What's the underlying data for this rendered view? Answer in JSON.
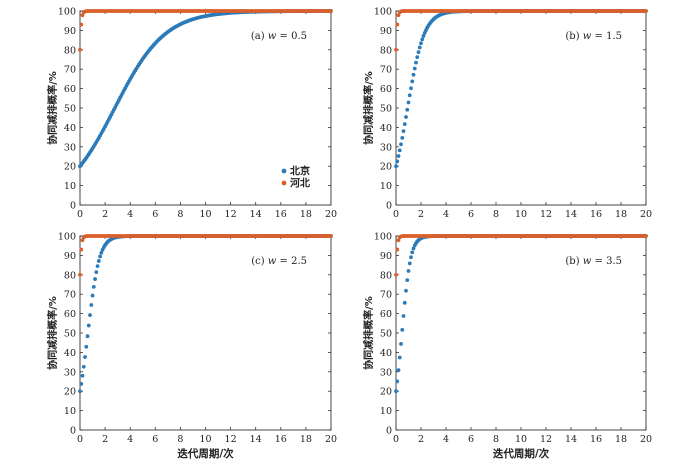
{
  "colors": {
    "beijing": "#2b7bba",
    "hebei": "#d9602a",
    "axis": "#333333"
  },
  "chart_data": [
    {
      "type": "scatter",
      "annotation_prefix": "(a) ",
      "annotation_w": "w",
      "annotation_value": " = 0.5",
      "ylabel": "协同减排概率/%",
      "xlabel": "",
      "xlim": [
        0,
        20
      ],
      "ylim": [
        0,
        100
      ],
      "xticks": [
        "0",
        "2",
        "4",
        "6",
        "8",
        "10",
        "12",
        "14",
        "16",
        "18",
        "20"
      ],
      "yticks": [
        "0",
        "10",
        "20",
        "30",
        "40",
        "50",
        "60",
        "70",
        "80",
        "90",
        "100"
      ],
      "legend": {
        "placement": "right",
        "entries": [
          "北京",
          "河北"
        ]
      },
      "series": [
        {
          "name": "北京",
          "model": "logistic",
          "start": 20,
          "rate": 0.5
        },
        {
          "name": "河北",
          "model": "logistic",
          "start": 80,
          "rate": 12
        }
      ]
    },
    {
      "type": "scatter",
      "annotation_prefix": "(b) ",
      "annotation_w": "w",
      "annotation_value": " = 1.5",
      "ylabel": "协同减排概率/%",
      "xlabel": "",
      "xlim": [
        0,
        20
      ],
      "ylim": [
        0,
        100
      ],
      "xticks": [
        "0",
        "2",
        "4",
        "6",
        "8",
        "10",
        "12",
        "14",
        "16",
        "18",
        "20"
      ],
      "yticks": [
        "0",
        "10",
        "20",
        "30",
        "40",
        "50",
        "60",
        "70",
        "80",
        "90",
        "100"
      ],
      "series": [
        {
          "name": "北京",
          "model": "logistic",
          "start": 20,
          "rate": 1.5
        },
        {
          "name": "河北",
          "model": "logistic",
          "start": 80,
          "rate": 12
        }
      ]
    },
    {
      "type": "scatter",
      "annotation_prefix": "(c) ",
      "annotation_w": "w",
      "annotation_value": " = 2.5",
      "ylabel": "协同减排概率/%",
      "xlabel": "迭代周期/次",
      "xlim": [
        0,
        20
      ],
      "ylim": [
        0,
        100
      ],
      "xticks": [
        "0",
        "2",
        "4",
        "6",
        "8",
        "10",
        "12",
        "14",
        "16",
        "18",
        "20"
      ],
      "yticks": [
        "0",
        "10",
        "20",
        "30",
        "40",
        "50",
        "60",
        "70",
        "80",
        "90",
        "100"
      ],
      "series": [
        {
          "name": "北京",
          "model": "logistic",
          "start": 20,
          "rate": 2.2
        },
        {
          "name": "河北",
          "model": "logistic",
          "start": 80,
          "rate": 12
        }
      ]
    },
    {
      "type": "scatter",
      "annotation_prefix": "(b) ",
      "annotation_w": "w",
      "annotation_value": " = 3.5",
      "ylabel": "协同减排概率/%",
      "xlabel": "迭代周期/次",
      "xlim": [
        0,
        20
      ],
      "ylim": [
        0,
        100
      ],
      "xticks": [
        "0",
        "2",
        "4",
        "6",
        "8",
        "10",
        "12",
        "14",
        "16",
        "18",
        "20"
      ],
      "yticks": [
        "0",
        "10",
        "20",
        "30",
        "40",
        "50",
        "60",
        "70",
        "80",
        "90",
        "100"
      ],
      "series": [
        {
          "name": "北京",
          "model": "logistic",
          "start": 20,
          "rate": 2.9
        },
        {
          "name": "河北",
          "model": "logistic",
          "start": 80,
          "rate": 12
        }
      ]
    }
  ]
}
